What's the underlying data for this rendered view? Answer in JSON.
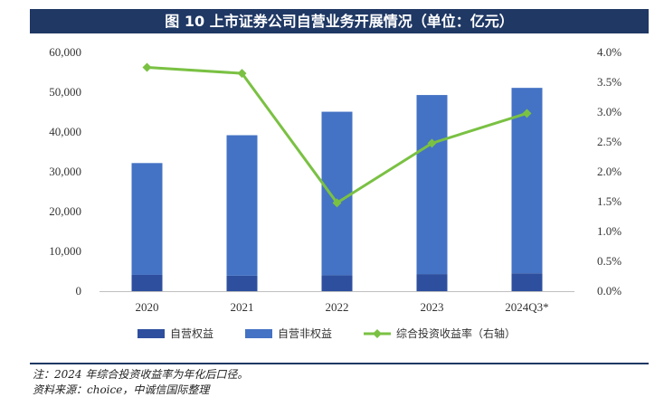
{
  "header": {
    "title": "图 10  上市证券公司自营业务开展情况（单位：亿元）"
  },
  "chart_data": {
    "type": "bar",
    "categories": [
      "2020",
      "2021",
      "2022",
      "2023",
      "2024Q3*"
    ],
    "series": [
      {
        "name": "自营权益",
        "type": "bar",
        "stack": "total",
        "axis": "left",
        "color": "#2e4f9e",
        "values": [
          4100,
          3900,
          4000,
          4300,
          4500
        ]
      },
      {
        "name": "自营非权益",
        "type": "bar",
        "stack": "total",
        "axis": "left",
        "color": "#4472c4",
        "values": [
          28100,
          35300,
          41100,
          45000,
          46600
        ]
      },
      {
        "name": "综合投资收益率（右轴）",
        "type": "line",
        "axis": "right",
        "color": "#7ac143",
        "values": [
          3.75,
          3.65,
          1.48,
          2.48,
          2.98
        ]
      }
    ],
    "y_left": {
      "ylim": [
        0,
        60000
      ],
      "ticks": [
        "0",
        "10,000",
        "20,000",
        "30,000",
        "40,000",
        "50,000",
        "60,000"
      ]
    },
    "y_right": {
      "ylim": [
        0,
        4.0
      ],
      "ticks": [
        "0.0%",
        "0.5%",
        "1.0%",
        "1.5%",
        "2.0%",
        "2.5%",
        "3.0%",
        "3.5%",
        "4.0%"
      ]
    },
    "grid": false,
    "legend_position": "bottom"
  },
  "footer": {
    "note": "注：2024 年综合投资收益率为年化后口径。",
    "source": "资料来源：choice，中诚信国际整理"
  }
}
